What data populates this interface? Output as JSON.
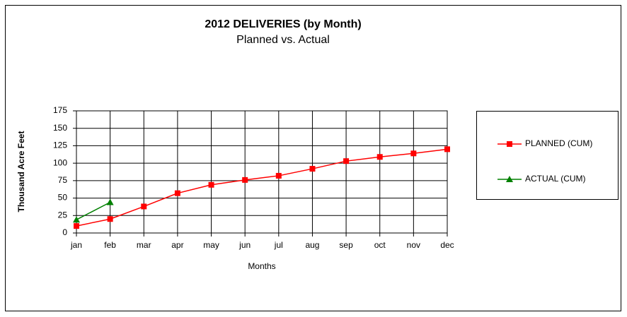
{
  "chart_data": {
    "type": "line",
    "title": "2012 DELIVERIES (by Month)",
    "subtitle": "Planned vs. Actual",
    "x_label": "Months",
    "y_label": "Thousand Acre Feet",
    "categories": [
      "jan",
      "feb",
      "mar",
      "apr",
      "may",
      "jun",
      "jul",
      "aug",
      "sep",
      "oct",
      "nov",
      "dec"
    ],
    "series": [
      {
        "name": "PLANNED (CUM)",
        "color": "#ff0000",
        "marker": "square",
        "values": [
          10,
          20,
          38,
          57,
          69,
          76,
          82,
          92,
          103,
          109,
          114,
          120
        ]
      },
      {
        "name": "ACTUAL (CUM)",
        "color": "#008000",
        "marker": "triangle",
        "values": [
          19,
          44,
          null,
          null,
          null,
          null,
          null,
          null,
          null,
          null,
          null,
          null
        ]
      }
    ],
    "ylim": [
      0,
      175
    ],
    "yticks": [
      0,
      25,
      50,
      75,
      100,
      125,
      150,
      175
    ],
    "grid": true,
    "legend": "right"
  }
}
